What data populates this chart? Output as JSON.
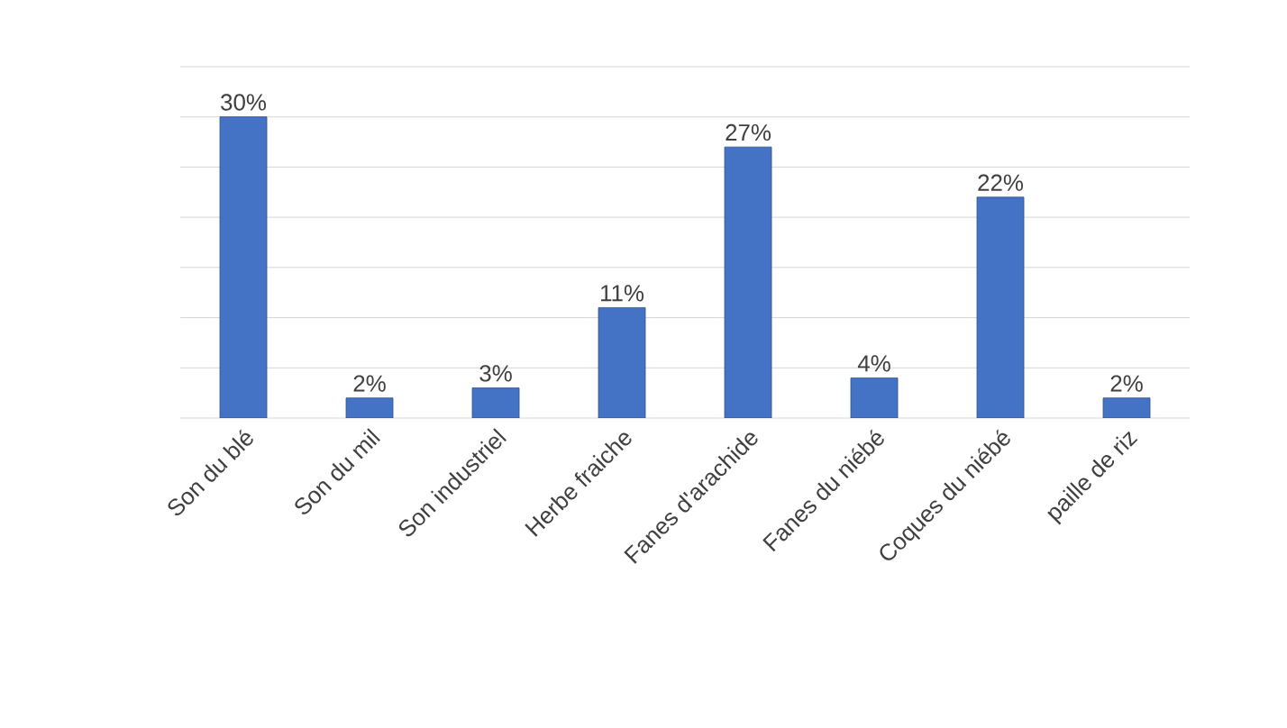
{
  "chart_data": {
    "type": "bar",
    "categories": [
      "Son du blé",
      "Son du mil",
      "Son industriel",
      "Herbe fraiche",
      "Fanes d'arachide",
      "Fanes du niébé",
      "Coques du niébé",
      "paille de riz"
    ],
    "values": [
      30,
      2,
      3,
      11,
      27,
      4,
      22,
      2
    ],
    "value_labels": [
      "30%",
      "2%",
      "3%",
      "11%",
      "27%",
      "4%",
      "22%",
      "2%"
    ],
    "color": "#4472c4",
    "ylim": [
      0,
      35
    ],
    "yticks": [
      {
        "value": 0,
        "label": null
      },
      {
        "value": 5,
        "label": null
      },
      {
        "value": 10,
        "label": null
      },
      {
        "value": 15,
        "label": null
      },
      {
        "value": 20,
        "label": null
      },
      {
        "value": 25,
        "label": null
      },
      {
        "value": 30,
        "label": null
      },
      {
        "value": 35,
        "label": null
      }
    ],
    "grid": "y"
  }
}
